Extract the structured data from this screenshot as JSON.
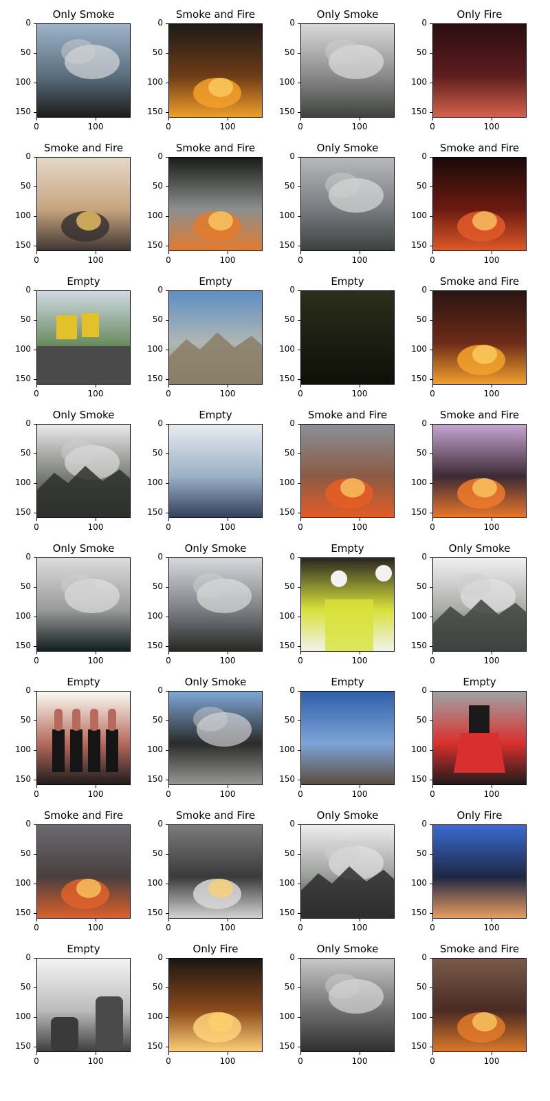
{
  "grid": {
    "rows": 8,
    "cols": 4,
    "axis": {
      "y_ticks": [
        "0",
        "50",
        "100",
        "150"
      ],
      "x_ticks": [
        "0",
        "100"
      ]
    },
    "panels": [
      {
        "title": "Only Smoke",
        "scene": "smoke-trees",
        "colors": [
          "#9db3c8",
          "#5b6e7e",
          "#1a1a17"
        ]
      },
      {
        "title": "Smoke and Fire",
        "scene": "fire-hillside",
        "colors": [
          "#1e1a16",
          "#6e3b16",
          "#f2a12a"
        ]
      },
      {
        "title": "Only Smoke",
        "scene": "smoke-aerial",
        "colors": [
          "#d9d9d9",
          "#8a8a8a",
          "#3c3f3b"
        ]
      },
      {
        "title": "Only Fire",
        "scene": "blurred-red",
        "colors": [
          "#2a0d10",
          "#5e1d1f",
          "#d8654d"
        ]
      },
      {
        "title": "Smoke and Fire",
        "scene": "wildfire-plume",
        "colors": [
          "#e6d8c8",
          "#c8a47f",
          "#3a3330"
        ]
      },
      {
        "title": "Smoke and Fire",
        "scene": "car-fire-road",
        "colors": [
          "#1a1c18",
          "#8c8f8e",
          "#e47a2a"
        ]
      },
      {
        "title": "Only Smoke",
        "scene": "smoke-city",
        "colors": [
          "#b7b9bb",
          "#787b7f",
          "#3b3f3d"
        ]
      },
      {
        "title": "Smoke and Fire",
        "scene": "night-fire",
        "colors": [
          "#1a0a0a",
          "#6b1a10",
          "#e25b2a"
        ]
      },
      {
        "title": "Empty",
        "scene": "road-rollers",
        "colors": [
          "#cfd9e4",
          "#6e8f64",
          "#4a4a4a"
        ]
      },
      {
        "title": "Empty",
        "scene": "fisheye-valley",
        "colors": [
          "#5d8fc4",
          "#b0b6b4",
          "#8a7e66"
        ]
      },
      {
        "title": "Empty",
        "scene": "dark-night",
        "colors": [
          "#2b2f1a",
          "#1b1d12",
          "#0e0f08"
        ]
      },
      {
        "title": "Smoke and Fire",
        "scene": "fire-dark",
        "colors": [
          "#2a1412",
          "#6e2a18",
          "#f3a32e"
        ]
      },
      {
        "title": "Only Smoke",
        "scene": "smoke-mountain",
        "colors": [
          "#e9e9e9",
          "#7a7d78",
          "#2d2f2a"
        ]
      },
      {
        "title": "Empty",
        "scene": "classroom",
        "colors": [
          "#e8ecf0",
          "#9ab0c6",
          "#2f3c5a"
        ]
      },
      {
        "title": "Smoke and Fire",
        "scene": "building-fire",
        "colors": [
          "#8a9098",
          "#8b5a44",
          "#e65d24"
        ]
      },
      {
        "title": "Smoke and Fire",
        "scene": "street-fire",
        "colors": [
          "#c7a6d2",
          "#3c2a35",
          "#f07a2a"
        ]
      },
      {
        "title": "Only Smoke",
        "scene": "smoke-bridge",
        "colors": [
          "#dcdcdc",
          "#9a9a9a",
          "#0e1a1a"
        ]
      },
      {
        "title": "Only Smoke",
        "scene": "smoke-forest",
        "colors": [
          "#d6d8dc",
          "#7b7f84",
          "#242621"
        ]
      },
      {
        "title": "Empty",
        "scene": "workers-helmets",
        "colors": [
          "#2a2622",
          "#d8e23a",
          "#f2f2f2"
        ]
      },
      {
        "title": "Only Smoke",
        "scene": "hazy-valley",
        "colors": [
          "#f0f0f0",
          "#a9aba8",
          "#3e423e"
        ]
      },
      {
        "title": "Empty",
        "scene": "lipsticks",
        "colors": [
          "#fbfcf3",
          "#b76a5c",
          "#1a1a1a"
        ]
      },
      {
        "title": "Only Smoke",
        "scene": "industrial-smoke",
        "colors": [
          "#7ea8d6",
          "#2b2b2b",
          "#9a9a95"
        ]
      },
      {
        "title": "Empty",
        "scene": "blue-sky-pole",
        "colors": [
          "#2e5fa8",
          "#7da4d8",
          "#5a4a3a"
        ]
      },
      {
        "title": "Empty",
        "scene": "woman-red-skirt",
        "colors": [
          "#a0a4a6",
          "#d8302e",
          "#1a1a1a"
        ]
      },
      {
        "title": "Smoke and Fire",
        "scene": "fire-line-dusk",
        "colors": [
          "#6b6a70",
          "#4a3f3f",
          "#e0622a"
        ]
      },
      {
        "title": "Smoke and Fire",
        "scene": "warehouse-fire",
        "colors": [
          "#7b7b7b",
          "#3a3a3a",
          "#d8d8d8"
        ]
      },
      {
        "title": "Only Smoke",
        "scene": "hazy-peaks",
        "colors": [
          "#eeeeee",
          "#9a9c9a",
          "#2b2d2b"
        ]
      },
      {
        "title": "Only Fire",
        "scene": "blurred-blue",
        "colors": [
          "#3a6bd0",
          "#1e2744",
          "#f0a060"
        ]
      },
      {
        "title": "Empty",
        "scene": "backpacks-ad",
        "colors": [
          "#f4f4f4",
          "#bcbcbc",
          "#3a3a3a"
        ]
      },
      {
        "title": "Only Fire",
        "scene": "bonfire",
        "colors": [
          "#1a1612",
          "#8b4a1a",
          "#ffd27a"
        ]
      },
      {
        "title": "Only Smoke",
        "scene": "smoke-town",
        "colors": [
          "#c8c8c8",
          "#6e6e6e",
          "#2e2e2e"
        ]
      },
      {
        "title": "Smoke and Fire",
        "scene": "blurred-fire",
        "colors": [
          "#7a5a4a",
          "#4a2a22",
          "#e07a2a"
        ]
      }
    ]
  }
}
